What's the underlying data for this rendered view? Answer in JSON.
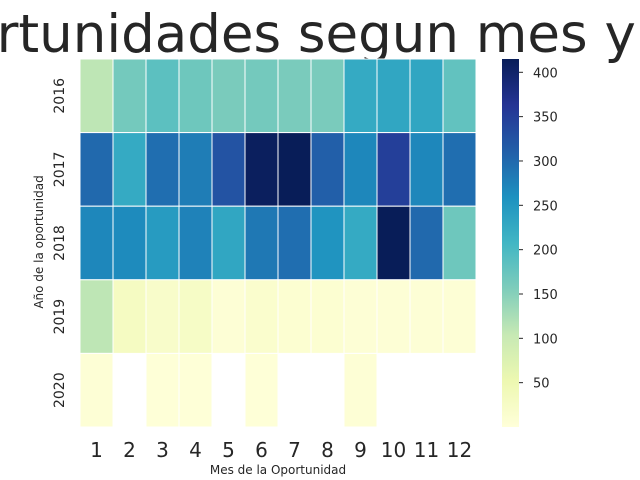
{
  "chart_data": {
    "type": "heatmap",
    "title": "Oportunidades segun mes y año",
    "xlabel": "Mes de la Oportunidad",
    "ylabel": "Año de la oportunidad",
    "x_categories": [
      "1",
      "2",
      "3",
      "4",
      "5",
      "6",
      "7",
      "8",
      "9",
      "10",
      "11",
      "12"
    ],
    "y_categories": [
      "2016",
      "2017",
      "2018",
      "2019",
      "2020"
    ],
    "values": [
      [
        110,
        165,
        185,
        170,
        160,
        165,
        160,
        160,
        225,
        230,
        230,
        180
      ],
      [
        300,
        225,
        295,
        280,
        325,
        410,
        415,
        310,
        270,
        350,
        270,
        295
      ],
      [
        270,
        265,
        245,
        275,
        230,
        285,
        295,
        255,
        225,
        415,
        300,
        170
      ],
      [
        110,
        30,
        20,
        25,
        5,
        15,
        10,
        10,
        5,
        5,
        5,
        5
      ],
      [
        5,
        null,
        3,
        2,
        null,
        2,
        null,
        null,
        5,
        null,
        null,
        null
      ]
    ],
    "colorbar": {
      "min": 0,
      "max": 415,
      "ticks": [
        50,
        100,
        150,
        200,
        250,
        300,
        350,
        400
      ],
      "colormap": "YlGnBu",
      "stops": [
        "#ffffd9",
        "#edf8b1",
        "#c7e9b4",
        "#7fcdbb",
        "#41b6c4",
        "#1d91c0",
        "#225ea8",
        "#253494",
        "#081d58"
      ]
    }
  }
}
